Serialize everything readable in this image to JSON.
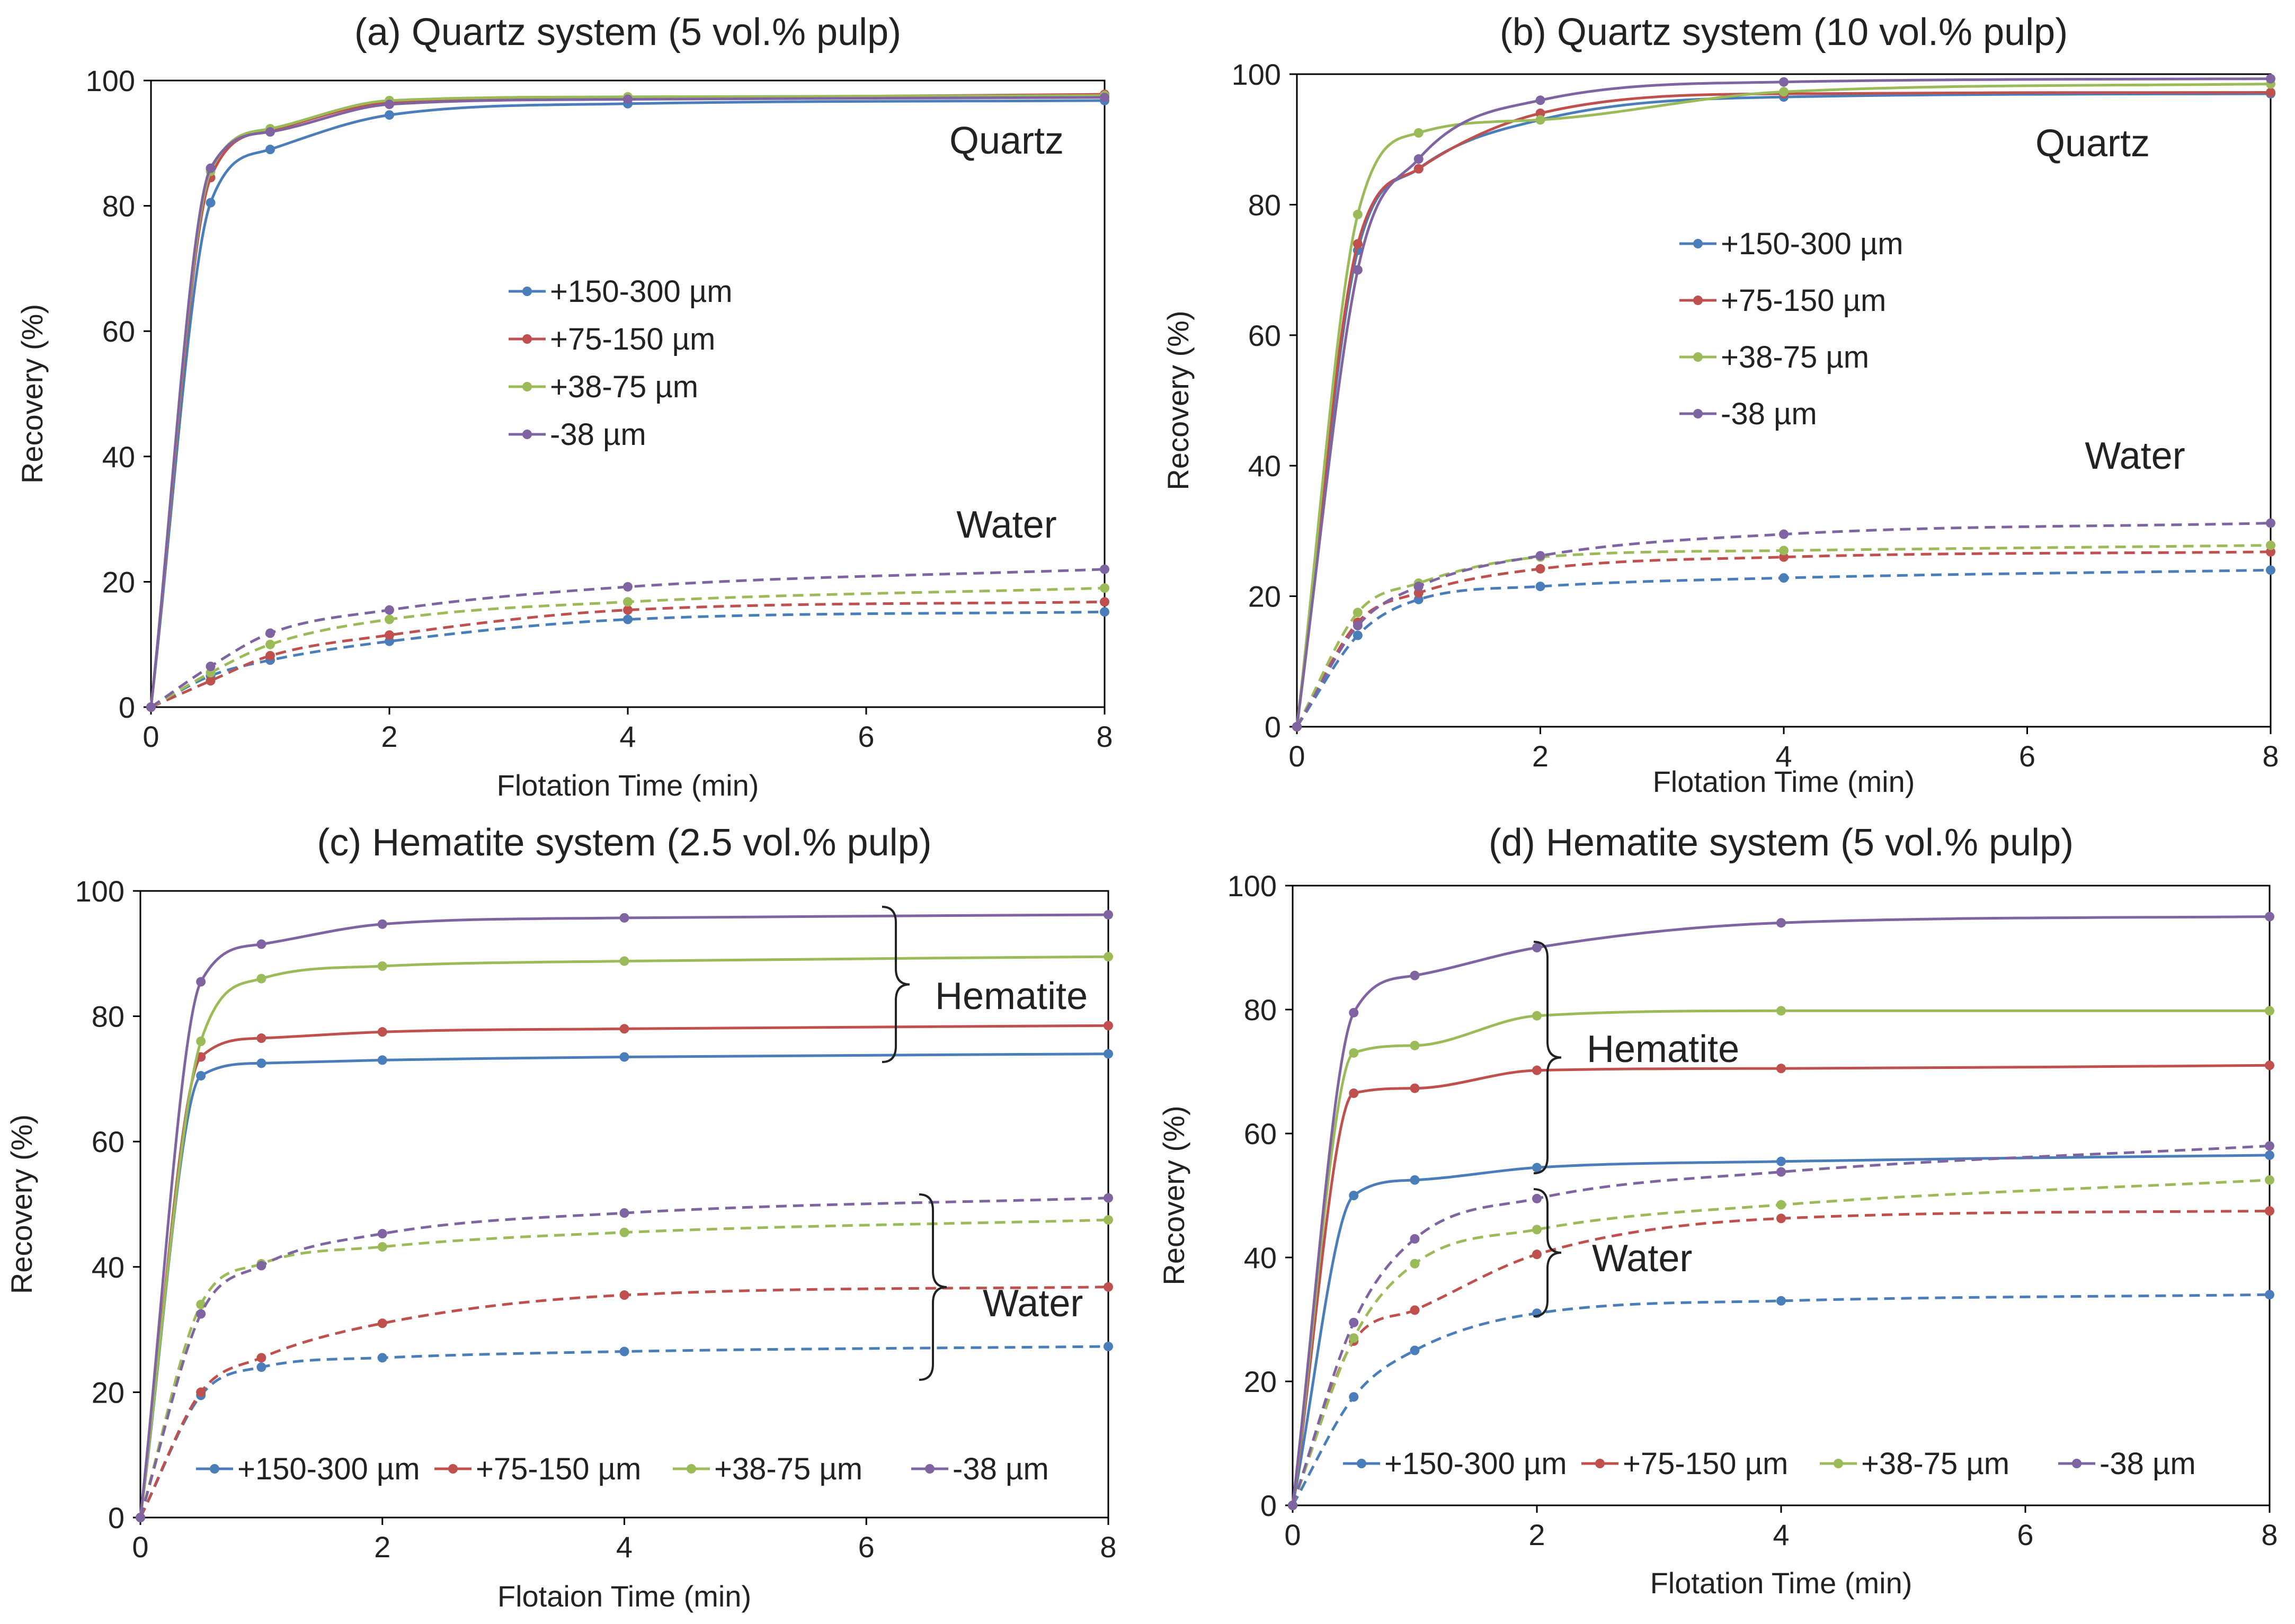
{
  "colors": {
    "+150-300 µm": "#4a7ebb",
    "+75-150 µm": "#c0504d",
    "+38-75 µm": "#9bbb59",
    "-38 µm": "#8064a2"
  },
  "chart_data": [
    {
      "type": "line",
      "panel": "a",
      "title": "(a) Quartz system (5 vol.% pulp)",
      "xlabel": "Flotation Time (min)",
      "ylabel": "Recovery (%)",
      "xlim": [
        0,
        8
      ],
      "ylim": [
        0,
        100
      ],
      "xticks": [
        "0",
        "2",
        "4",
        "6",
        "8"
      ],
      "yticks": [
        "0",
        "20",
        "40",
        "60",
        "80",
        "100"
      ],
      "x": [
        0,
        0.5,
        1,
        2,
        4,
        8
      ],
      "legend_labels": [
        "+150-300 µm",
        "+75-150 µm",
        "+38-75 µm",
        "-38 µm"
      ],
      "legend_layout": "vertical",
      "annotations": [
        {
          "text": "Quartz"
        },
        {
          "text": "Water"
        }
      ],
      "series": [
        {
          "name": "+150-300 µm",
          "group": "Quartz",
          "dashed": false,
          "values": [
            0,
            80.5,
            89,
            94.5,
            96.3,
            96.8
          ]
        },
        {
          "name": "+75-150 µm",
          "group": "Quartz",
          "dashed": false,
          "values": [
            0,
            84.5,
            92,
            96.5,
            97.2,
            97.8
          ]
        },
        {
          "name": "+38-75 µm",
          "group": "Quartz",
          "dashed": false,
          "values": [
            0,
            85.5,
            92.3,
            96.8,
            97.4,
            97.6
          ]
        },
        {
          "name": "-38 µm",
          "group": "Quartz",
          "dashed": false,
          "values": [
            0,
            86,
            91.8,
            96.2,
            97,
            97.3
          ]
        },
        {
          "name": "+150-300 µm",
          "group": "Water",
          "dashed": true,
          "values": [
            0,
            5,
            7.5,
            10.5,
            14,
            15.2
          ]
        },
        {
          "name": "+75-150 µm",
          "group": "Water",
          "dashed": true,
          "values": [
            0,
            4.2,
            8.2,
            11.5,
            15.5,
            16.8
          ]
        },
        {
          "name": "+38-75 µm",
          "group": "Water",
          "dashed": true,
          "values": [
            0,
            5.5,
            10,
            14,
            16.8,
            19
          ]
        },
        {
          "name": "-38 µm",
          "group": "Water",
          "dashed": true,
          "values": [
            0,
            6.5,
            11.8,
            15.5,
            19.2,
            22
          ]
        }
      ]
    },
    {
      "type": "line",
      "panel": "b",
      "title": "(b) Quartz system (10 vol.% pulp)",
      "xlabel": "Flotation  Time (min)",
      "ylabel": "Recovery  (%)",
      "xlim": [
        0,
        8
      ],
      "ylim": [
        0,
        100
      ],
      "xticks": [
        "0",
        "2",
        "4",
        "6",
        "8"
      ],
      "yticks": [
        "0",
        "20",
        "40",
        "60",
        "80",
        "100"
      ],
      "x": [
        0,
        0.5,
        1,
        2,
        4,
        8
      ],
      "legend_labels": [
        "+150-300 µm",
        "+75-150 µm",
        "+38-75 µm",
        "-38 µm"
      ],
      "legend_layout": "vertical",
      "annotations": [
        {
          "text": "Quartz"
        },
        {
          "text": "Water"
        }
      ],
      "series": [
        {
          "name": "+150-300 µm",
          "group": "Quartz",
          "dashed": false,
          "values": [
            0,
            73,
            85.5,
            93,
            96.5,
            97
          ]
        },
        {
          "name": "+75-150 µm",
          "group": "Quartz",
          "dashed": false,
          "values": [
            0,
            74,
            85.5,
            94,
            97,
            97.2
          ]
        },
        {
          "name": "+38-75 µm",
          "group": "Quartz",
          "dashed": false,
          "values": [
            0,
            78.5,
            91,
            93,
            97.3,
            98.5
          ]
        },
        {
          "name": "-38 µm",
          "group": "Quartz",
          "dashed": false,
          "values": [
            0,
            70,
            87,
            96,
            98.8,
            99.3
          ]
        },
        {
          "name": "+150-300 µm",
          "group": "Water",
          "dashed": true,
          "values": [
            0,
            14,
            19.5,
            21.5,
            22.8,
            24
          ]
        },
        {
          "name": "+75-150 µm",
          "group": "Water",
          "dashed": true,
          "values": [
            0,
            16,
            20.5,
            24.2,
            26,
            26.8
          ]
        },
        {
          "name": "+38-75 µm",
          "group": "Water",
          "dashed": true,
          "values": [
            0,
            17.5,
            22,
            26,
            27,
            27.8
          ]
        },
        {
          "name": "-38 µm",
          "group": "Water",
          "dashed": true,
          "values": [
            0,
            15.5,
            21.5,
            26.2,
            29.5,
            31.2
          ]
        }
      ]
    },
    {
      "type": "line",
      "panel": "c",
      "title": "(c) Hematite system (2.5 vol.% pulp)",
      "xlabel": "Flotaion Time (min)",
      "ylabel": "Recovery (%)",
      "xlim": [
        0,
        8
      ],
      "ylim": [
        0,
        100
      ],
      "xticks": [
        "0",
        "2",
        "4",
        "6",
        "8"
      ],
      "yticks": [
        "0",
        "20",
        "40",
        "60",
        "80",
        "100"
      ],
      "x": [
        0,
        0.5,
        1,
        2,
        4,
        8
      ],
      "legend_labels": [
        "+150-300 µm",
        "+75-150 µm",
        "+38-75 µm",
        "-38 µm"
      ],
      "legend_layout": "horizontal",
      "annotations": [
        {
          "text": "Hematite"
        },
        {
          "text": "Water"
        }
      ],
      "series": [
        {
          "name": "+150-300 µm",
          "group": "Hematite",
          "dashed": false,
          "values": [
            0,
            70.5,
            72.5,
            73,
            73.5,
            74
          ]
        },
        {
          "name": "+75-150 µm",
          "group": "Hematite",
          "dashed": false,
          "values": [
            0,
            73.5,
            76.5,
            77.5,
            78,
            78.5
          ]
        },
        {
          "name": "+38-75 µm",
          "group": "Hematite",
          "dashed": false,
          "values": [
            0,
            76,
            86,
            88,
            88.8,
            89.5
          ]
        },
        {
          "name": "-38 µm",
          "group": "Hematite",
          "dashed": false,
          "values": [
            0,
            85.5,
            91.5,
            94.7,
            95.7,
            96.2
          ]
        },
        {
          "name": "+150-300 µm",
          "group": "Water",
          "dashed": true,
          "values": [
            0,
            19.5,
            24,
            25.5,
            26.5,
            27.3
          ]
        },
        {
          "name": "+75-150 µm",
          "group": "Water",
          "dashed": true,
          "values": [
            0,
            20,
            25.5,
            31,
            35.5,
            36.8
          ]
        },
        {
          "name": "+38-75 µm",
          "group": "Water",
          "dashed": true,
          "values": [
            0,
            34,
            40.5,
            43.2,
            45.5,
            47.5
          ]
        },
        {
          "name": "-38 µm",
          "group": "Water",
          "dashed": true,
          "values": [
            0,
            32.5,
            40.2,
            45.3,
            48.6,
            51
          ]
        }
      ]
    },
    {
      "type": "line",
      "panel": "d",
      "title": "(d) Hematite system (5 vol.% pulp)",
      "xlabel": "Flotation Time (min)",
      "ylabel": "Recovery (%)",
      "xlim": [
        0,
        8
      ],
      "ylim": [
        0,
        100
      ],
      "xticks": [
        "0",
        "2",
        "4",
        "6",
        "8"
      ],
      "yticks": [
        "0",
        "20",
        "40",
        "60",
        "80",
        "100"
      ],
      "x": [
        0,
        0.5,
        1,
        2,
        4,
        8
      ],
      "legend_labels": [
        "+150-300 µm",
        "+75-150 µm",
        "+38-75 µm",
        "-38 µm"
      ],
      "legend_layout": "horizontal",
      "annotations": [
        {
          "text": "Hematite"
        },
        {
          "text": "Water"
        }
      ],
      "series": [
        {
          "name": "+150-300 µm",
          "group": "Hematite",
          "dashed": false,
          "values": [
            0,
            50,
            52.5,
            54.5,
            55.5,
            56.5
          ]
        },
        {
          "name": "+75-150 µm",
          "group": "Hematite",
          "dashed": false,
          "values": [
            0,
            66.5,
            67.3,
            70.2,
            70.5,
            71
          ]
        },
        {
          "name": "+38-75 µm",
          "group": "Hematite",
          "dashed": false,
          "values": [
            0,
            73,
            74.2,
            79,
            79.8,
            79.8
          ]
        },
        {
          "name": "-38 µm",
          "group": "Hematite",
          "dashed": false,
          "values": [
            0,
            79.5,
            85.5,
            90,
            94,
            95
          ]
        },
        {
          "name": "+150-300 µm",
          "group": "Water",
          "dashed": true,
          "values": [
            0,
            17.5,
            25,
            31,
            33,
            34
          ]
        },
        {
          "name": "+75-150 µm",
          "group": "Water",
          "dashed": true,
          "values": [
            0,
            26.5,
            31.5,
            40.5,
            46.3,
            47.5
          ]
        },
        {
          "name": "+38-75 µm",
          "group": "Water",
          "dashed": true,
          "values": [
            0,
            27,
            39,
            44.5,
            48.5,
            52.5
          ]
        },
        {
          "name": "-38 µm",
          "group": "Water",
          "dashed": true,
          "values": [
            0,
            29.5,
            43,
            49.5,
            53.8,
            58
          ]
        }
      ]
    }
  ]
}
